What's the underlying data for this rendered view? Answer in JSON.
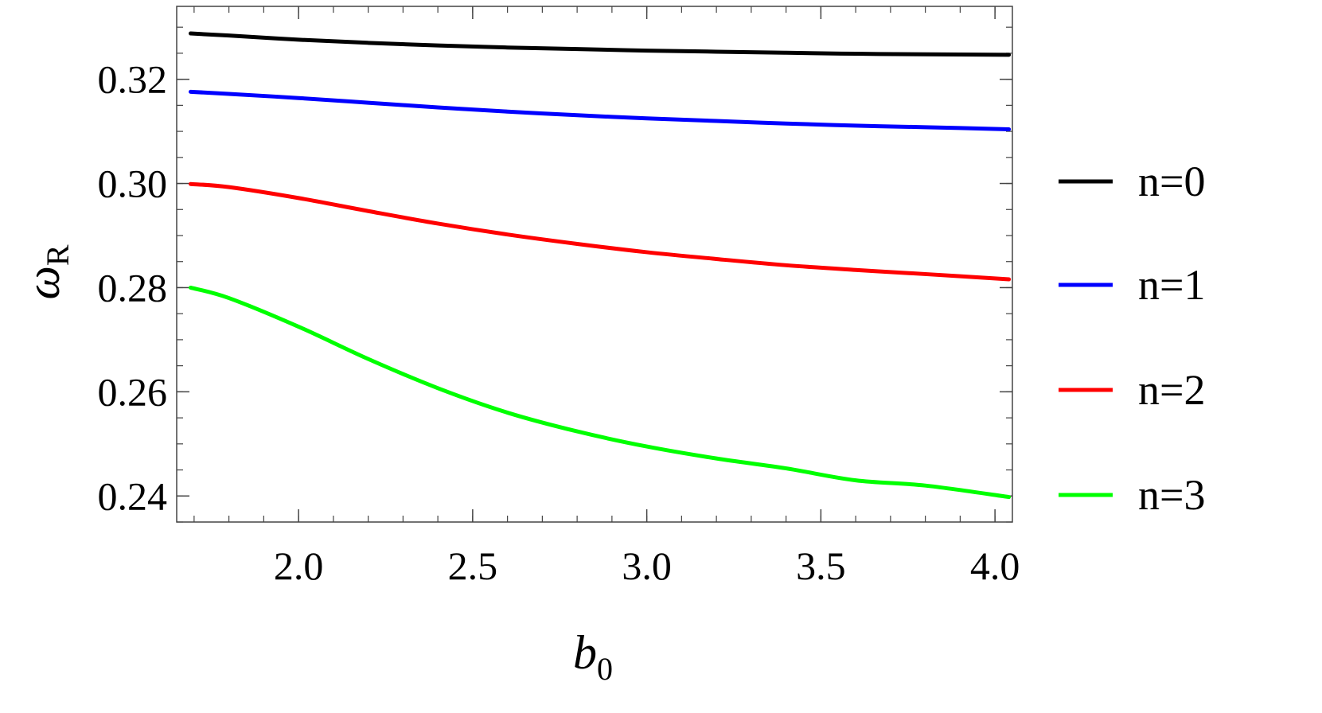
{
  "chart_data": {
    "type": "line",
    "xlabel": "b",
    "xlabel_sub": "0",
    "ylabel": "ω",
    "ylabel_sub": "R",
    "xlim": [
      1.65,
      4.05
    ],
    "ylim": [
      0.235,
      0.334
    ],
    "xticks": [
      2.0,
      2.5,
      3.0,
      3.5,
      4.0
    ],
    "xtick_labels": [
      "2.0",
      "2.5",
      "3.0",
      "3.5",
      "4.0"
    ],
    "yticks": [
      0.24,
      0.26,
      0.28,
      0.3,
      0.32
    ],
    "ytick_labels": [
      "0.24",
      "0.26",
      "0.28",
      "0.30",
      "0.32"
    ],
    "x_minor_step": 0.1,
    "y_minor_step": 0.005,
    "grid": false,
    "frame": true,
    "legend_position": "right",
    "series": [
      {
        "name": "n=0",
        "color": "#000000",
        "x": [
          1.69,
          1.8,
          2.0,
          2.2,
          2.4,
          2.6,
          2.8,
          3.0,
          3.2,
          3.4,
          3.6,
          3.8,
          4.04
        ],
        "y": [
          0.3288,
          0.3284,
          0.3276,
          0.327,
          0.3265,
          0.3261,
          0.3258,
          0.3255,
          0.3253,
          0.3251,
          0.3249,
          0.3248,
          0.3247
        ]
      },
      {
        "name": "n=1",
        "color": "#0000ff",
        "x": [
          1.69,
          1.8,
          2.0,
          2.2,
          2.4,
          2.6,
          2.8,
          3.0,
          3.2,
          3.4,
          3.6,
          3.8,
          4.04
        ],
        "y": [
          0.3176,
          0.3172,
          0.3164,
          0.3155,
          0.3146,
          0.3138,
          0.3131,
          0.3125,
          0.312,
          0.3115,
          0.3111,
          0.3108,
          0.3104
        ]
      },
      {
        "name": "n=2",
        "color": "#ff0000",
        "x": [
          1.69,
          1.8,
          2.0,
          2.2,
          2.4,
          2.6,
          2.8,
          3.0,
          3.2,
          3.4,
          3.6,
          3.8,
          4.04
        ],
        "y": [
          0.2999,
          0.2993,
          0.2972,
          0.2947,
          0.2923,
          0.2902,
          0.2884,
          0.2868,
          0.2855,
          0.2843,
          0.2834,
          0.2826,
          0.2816
        ]
      },
      {
        "name": "n=3",
        "color": "#00ff00",
        "x": [
          1.69,
          1.8,
          2.0,
          2.2,
          2.4,
          2.6,
          2.8,
          3.0,
          3.2,
          3.4,
          3.6,
          3.8,
          4.04
        ],
        "y": [
          0.28,
          0.278,
          0.2725,
          0.2663,
          0.2607,
          0.256,
          0.2524,
          0.2495,
          0.2472,
          0.2453,
          0.243,
          0.242,
          0.2398
        ]
      }
    ]
  }
}
